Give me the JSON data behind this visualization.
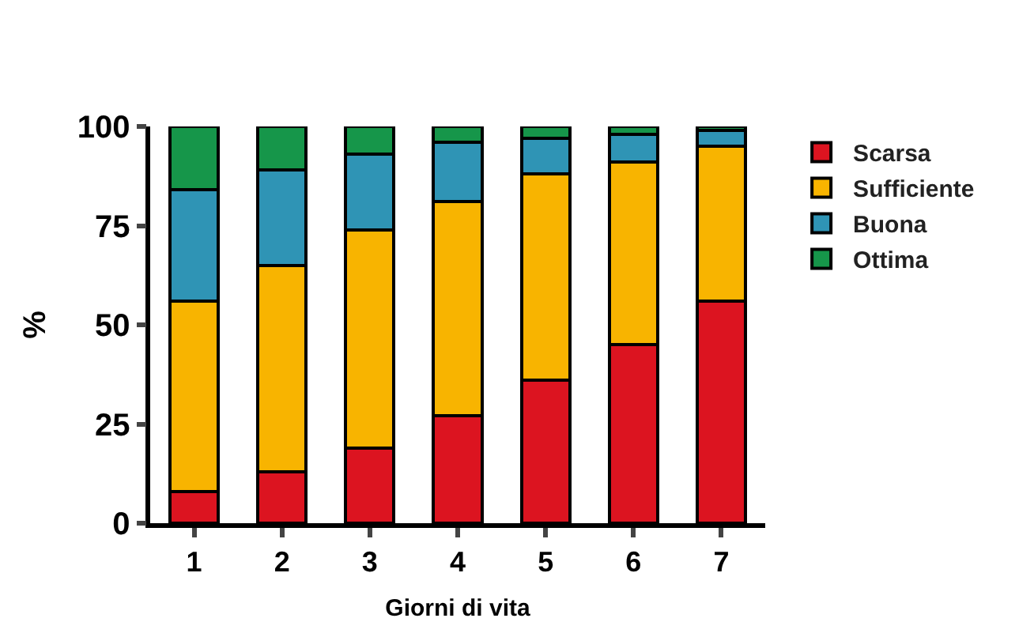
{
  "chart_data": {
    "type": "bar",
    "stacked": true,
    "xlabel": "Giorni di vita",
    "ylabel": "%",
    "categories": [
      "1",
      "2",
      "3",
      "4",
      "5",
      "6",
      "7"
    ],
    "series": [
      {
        "name": "Scarsa",
        "color": "#dc1420",
        "values": [
          8,
          13,
          19,
          27,
          36,
          45,
          56
        ]
      },
      {
        "name": "Sufficiente",
        "color": "#f8b400",
        "values": [
          48,
          52,
          55,
          54,
          52,
          46,
          39
        ]
      },
      {
        "name": "Buona",
        "color": "#2f94b5",
        "values": [
          28,
          24,
          19,
          15,
          9,
          7,
          4
        ]
      },
      {
        "name": "Ottima",
        "color": "#16964a",
        "values": [
          16,
          11,
          7,
          4,
          3,
          2,
          1
        ]
      }
    ],
    "ylim": [
      0,
      100
    ],
    "yticks": [
      0,
      25,
      50,
      75,
      100
    ],
    "legend": "right"
  }
}
